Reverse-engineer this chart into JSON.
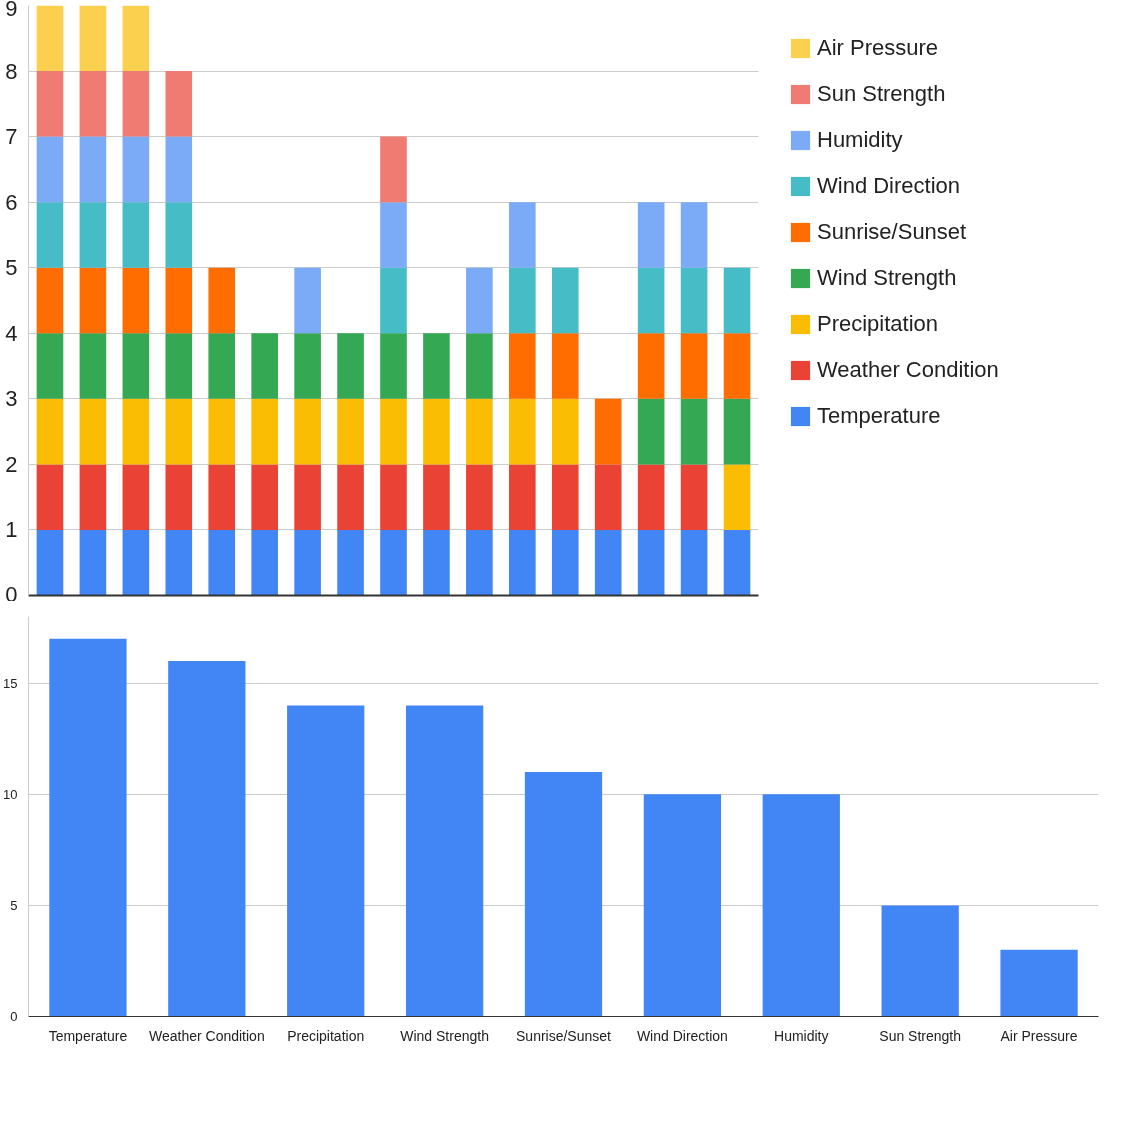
{
  "chart_data": [
    {
      "type": "bar",
      "stacked": true,
      "categories": [
        null,
        null,
        null,
        null,
        null,
        null,
        null,
        null,
        null,
        null,
        null,
        null,
        null,
        null,
        null,
        null,
        null
      ],
      "ylim": [
        0,
        9
      ],
      "yticks": [
        0,
        1,
        2,
        3,
        4,
        5,
        6,
        7,
        8,
        9
      ],
      "grid": "y",
      "legend": "right",
      "tick_labels": "y",
      "series": [
        {
          "name": "Temperature",
          "color": "#4285f4",
          "values": [
            1,
            1,
            1,
            1,
            1,
            1,
            1,
            1,
            1,
            1,
            1,
            1,
            1,
            1,
            1,
            1,
            1
          ]
        },
        {
          "name": "Weather Condition",
          "color": "#ea4335",
          "values": [
            1,
            1,
            1,
            1,
            1,
            1,
            1,
            1,
            1,
            1,
            1,
            1,
            1,
            1,
            1,
            1,
            0
          ]
        },
        {
          "name": "Precipitation",
          "color": "#fbbc04",
          "values": [
            1,
            1,
            1,
            1,
            1,
            1,
            1,
            1,
            1,
            1,
            1,
            1,
            1,
            0,
            0,
            0,
            1
          ]
        },
        {
          "name": "Wind Strength",
          "color": "#34a853",
          "values": [
            1,
            1,
            1,
            1,
            1,
            1,
            1,
            1,
            1,
            1,
            1,
            0,
            0,
            0,
            1,
            1,
            1
          ]
        },
        {
          "name": "Sunrise/Sunset",
          "color": "#ff6d01",
          "values": [
            1,
            1,
            1,
            1,
            1,
            0,
            0,
            0,
            0,
            0,
            0,
            1,
            1,
            1,
            1,
            1,
            1
          ]
        },
        {
          "name": "Wind Direction",
          "color": "#46bdc6",
          "values": [
            1,
            1,
            1,
            1,
            0,
            0,
            0,
            0,
            1,
            0,
            0,
            1,
            1,
            0,
            1,
            1,
            1
          ]
        },
        {
          "name": "Humidity",
          "color": "#7baaf7",
          "values": [
            1,
            1,
            1,
            1,
            0,
            0,
            1,
            0,
            1,
            0,
            1,
            1,
            0,
            0,
            1,
            1,
            0
          ]
        },
        {
          "name": "Sun Strength",
          "color": "#f07b72",
          "values": [
            1,
            1,
            1,
            1,
            0,
            0,
            0,
            0,
            1,
            0,
            0,
            0,
            0,
            0,
            0,
            0,
            0
          ]
        },
        {
          "name": "Air Pressure",
          "color": "#fcd04f",
          "values": [
            1,
            1,
            1,
            0,
            0,
            0,
            0,
            0,
            0,
            0,
            0,
            0,
            0,
            0,
            0,
            0,
            0
          ]
        }
      ]
    },
    {
      "type": "bar",
      "categories": [
        "Temperature",
        "Weather Condition",
        "Precipitation",
        "Wind Strength",
        "Sunrise/Sunset",
        "Wind Direction",
        "Humidity",
        "Sun Strength",
        "Air Pressure"
      ],
      "values": [
        17,
        16,
        14,
        14,
        11,
        10,
        10,
        5,
        3
      ],
      "color": "#4285f4",
      "ylim": [
        0,
        18
      ],
      "yticks": [
        0,
        5,
        10,
        15
      ],
      "grid": "y"
    }
  ]
}
